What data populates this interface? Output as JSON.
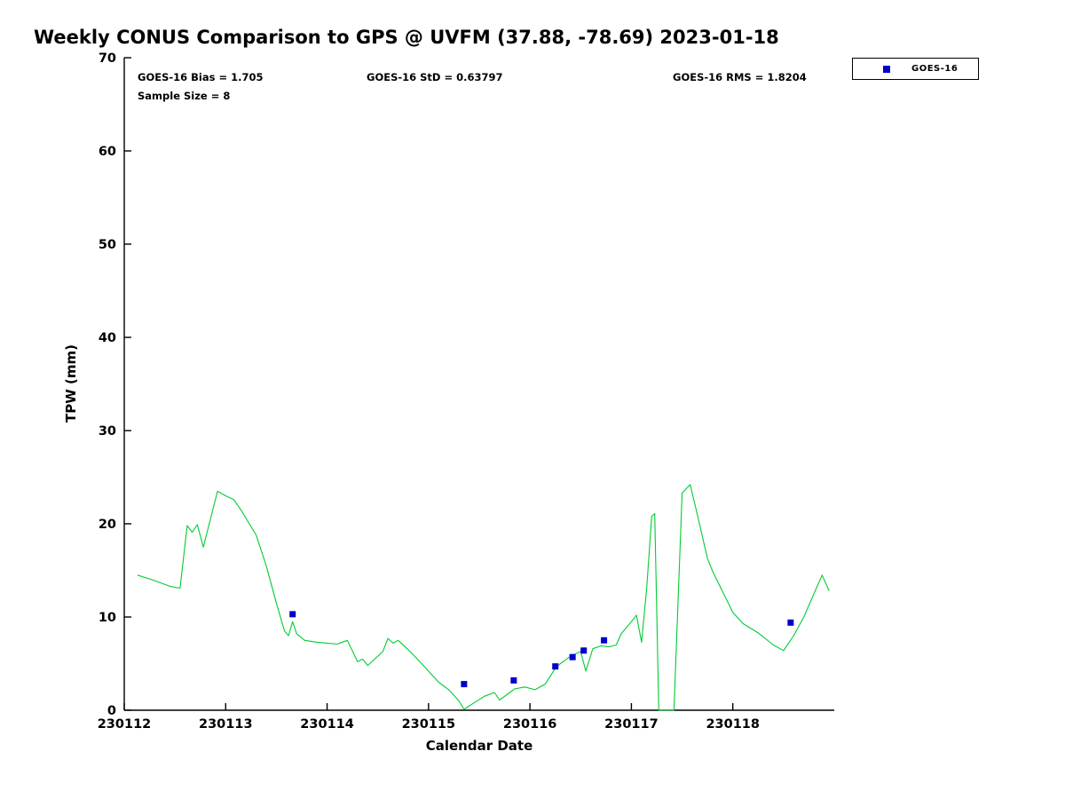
{
  "title": "Weekly CONUS Comparison to GPS @ UVFM (37.88, -78.69) 2023-01-18",
  "stats": {
    "bias": "GOES-16 Bias = 1.705",
    "std": "GOES-16 StD = 0.63797",
    "rms": "GOES-16 RMS = 1.8204",
    "sample_size": "Sample Size = 8"
  },
  "legend": {
    "label": "GOES-16",
    "marker_color": "#0000cc"
  },
  "axes": {
    "xlabel": "Calendar Date",
    "ylabel": "TPW (mm)",
    "x_range": [
      230112,
      230119
    ],
    "y_range": [
      0,
      70
    ],
    "x_ticks": [
      230112,
      230113,
      230114,
      230115,
      230116,
      230117,
      230118
    ],
    "y_ticks": [
      0,
      10,
      20,
      30,
      40,
      50,
      60,
      70
    ],
    "axis_color": "#000000"
  },
  "chart_data": {
    "type": "line",
    "title": "Weekly CONUS Comparison to GPS @ UVFM (37.88, -78.69) 2023-01-18",
    "xlabel": "Calendar Date",
    "ylabel": "TPW (mm)",
    "xlim": [
      230112,
      230119
    ],
    "ylim": [
      0,
      70
    ],
    "legend_position": "top-right-outside",
    "grid": false,
    "series": [
      {
        "name": "GPS",
        "type": "line",
        "color": "#00cc33",
        "points": [
          [
            230112.13,
            14.5
          ],
          [
            230112.3,
            13.9
          ],
          [
            230112.45,
            13.3
          ],
          [
            230112.55,
            13.1
          ],
          [
            230112.62,
            19.8
          ],
          [
            230112.67,
            19.1
          ],
          [
            230112.72,
            19.9
          ],
          [
            230112.78,
            17.5
          ],
          [
            230112.92,
            23.5
          ],
          [
            230113.0,
            23.0
          ],
          [
            230113.08,
            22.6
          ],
          [
            230113.15,
            21.5
          ],
          [
            230113.3,
            18.8
          ],
          [
            230113.4,
            15.5
          ],
          [
            230113.5,
            11.5
          ],
          [
            230113.58,
            8.5
          ],
          [
            230113.62,
            8.0
          ],
          [
            230113.66,
            9.5
          ],
          [
            230113.7,
            8.2
          ],
          [
            230113.78,
            7.5
          ],
          [
            230113.9,
            7.3
          ],
          [
            230114.0,
            7.2
          ],
          [
            230114.1,
            7.1
          ],
          [
            230114.2,
            7.5
          ],
          [
            230114.3,
            5.2
          ],
          [
            230114.35,
            5.5
          ],
          [
            230114.4,
            4.8
          ],
          [
            230114.55,
            6.3
          ],
          [
            230114.6,
            7.7
          ],
          [
            230114.65,
            7.2
          ],
          [
            230114.7,
            7.5
          ],
          [
            230114.8,
            6.5
          ],
          [
            230114.95,
            4.8
          ],
          [
            230115.1,
            3.0
          ],
          [
            230115.2,
            2.2
          ],
          [
            230115.3,
            1.0
          ],
          [
            230115.35,
            0.1
          ],
          [
            230115.45,
            0.8
          ],
          [
            230115.55,
            1.5
          ],
          [
            230115.65,
            1.9
          ],
          [
            230115.7,
            1.1
          ],
          [
            230115.85,
            2.3
          ],
          [
            230115.95,
            2.5
          ],
          [
            230116.05,
            2.2
          ],
          [
            230116.15,
            2.8
          ],
          [
            230116.25,
            4.5
          ],
          [
            230116.3,
            5.0
          ],
          [
            230116.4,
            5.8
          ],
          [
            230116.5,
            6.3
          ],
          [
            230116.55,
            4.2
          ],
          [
            230116.62,
            6.6
          ],
          [
            230116.7,
            6.9
          ],
          [
            230116.78,
            6.8
          ],
          [
            230116.85,
            7.0
          ],
          [
            230116.9,
            8.2
          ],
          [
            230117.0,
            9.5
          ],
          [
            230117.05,
            10.2
          ],
          [
            230117.1,
            7.3
          ],
          [
            230117.15,
            13.0
          ],
          [
            230117.2,
            20.8
          ],
          [
            230117.23,
            21.1
          ],
          [
            230117.27,
            0.0
          ],
          [
            230117.42,
            0.0
          ],
          [
            230117.5,
            23.3
          ],
          [
            230117.58,
            24.2
          ],
          [
            230117.65,
            21.0
          ],
          [
            230117.75,
            16.3
          ],
          [
            230117.8,
            14.9
          ],
          [
            230117.9,
            12.7
          ],
          [
            230118.0,
            10.5
          ],
          [
            230118.1,
            9.3
          ],
          [
            230118.25,
            8.3
          ],
          [
            230118.4,
            7.0
          ],
          [
            230118.5,
            6.4
          ],
          [
            230118.6,
            8.0
          ],
          [
            230118.7,
            10.0
          ],
          [
            230118.8,
            12.5
          ],
          [
            230118.88,
            14.5
          ],
          [
            230118.95,
            12.8
          ]
        ]
      },
      {
        "name": "GOES-16",
        "type": "scatter",
        "marker": "square",
        "color": "#0000cc",
        "points": [
          [
            230113.66,
            10.3
          ],
          [
            230115.35,
            2.8
          ],
          [
            230115.84,
            3.2
          ],
          [
            230116.25,
            4.7
          ],
          [
            230116.42,
            5.7
          ],
          [
            230116.53,
            6.4
          ],
          [
            230116.73,
            7.5
          ],
          [
            230118.57,
            9.4
          ]
        ]
      }
    ]
  }
}
